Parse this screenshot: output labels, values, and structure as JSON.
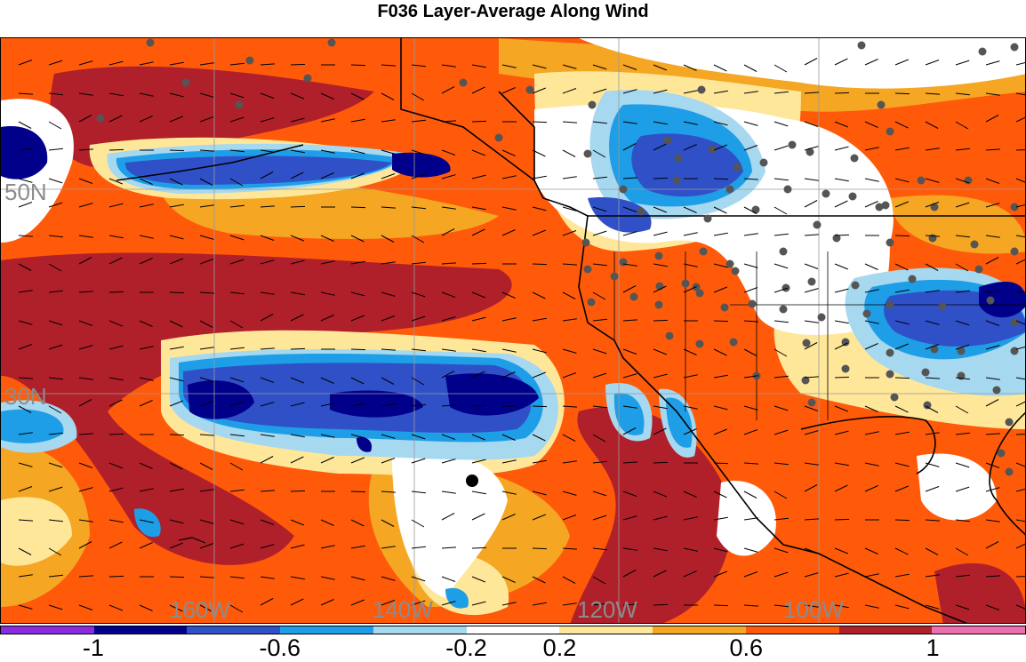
{
  "title": "F036 Layer-Average Along Wind",
  "map": {
    "lon_labels": [
      "160W",
      "140W",
      "120W",
      "100W"
    ],
    "lat_labels": [
      "50N",
      "30N"
    ]
  },
  "colorbar": {
    "colors": [
      "#8a2be2",
      "#00008b",
      "#3050c8",
      "#1e9ee6",
      "#a6d8f0",
      "#ffffff",
      "#ffe79a",
      "#f5a623",
      "#ff5a0a",
      "#b0202a",
      "#ee6fb0"
    ],
    "tick_labels": [
      "-1",
      "-0.6",
      "-0.2",
      "0.2",
      "0.6",
      "1"
    ]
  },
  "palette": {
    "dark_blue": "#00008b",
    "blue": "#3050c8",
    "light_blue": "#1e9ee6",
    "pale_blue": "#a6d8f0",
    "pale_yellow": "#ffe79a",
    "orange": "#f5a623",
    "red_orange": "#ff5a0a",
    "dark_red": "#b0202a",
    "station": "#555555"
  }
}
